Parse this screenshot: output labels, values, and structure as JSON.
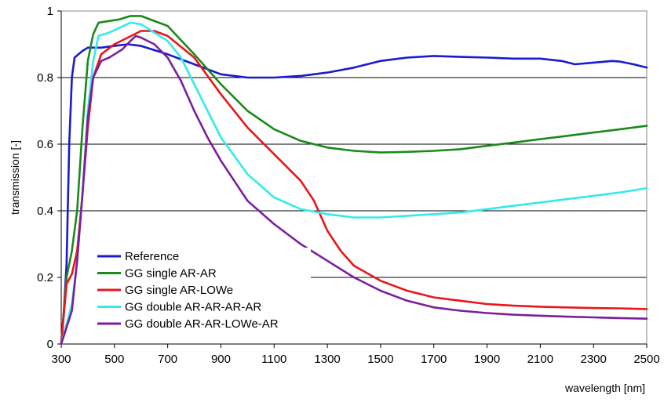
{
  "chart_data": {
    "type": "line",
    "title": "",
    "xlabel": "wavelength [nm]",
    "ylabel": "transmission [-]",
    "xlim": [
      300,
      2500
    ],
    "ylim": [
      0,
      1
    ],
    "xticks": [
      "300",
      "500",
      "700",
      "900",
      "1100",
      "1300",
      "1500",
      "1700",
      "1900",
      "2100",
      "2300",
      "2500"
    ],
    "yticks": [
      "0",
      "0.2",
      "0.4",
      "0.6",
      "0.8",
      "1"
    ],
    "grid": "horizontal",
    "legend_position": "lower-left",
    "series": [
      {
        "name": "Reference",
        "color": "#1a1ad0",
        "points": [
          [
            300,
            0.0
          ],
          [
            310,
            0.1
          ],
          [
            320,
            0.24
          ],
          [
            330,
            0.6
          ],
          [
            340,
            0.8
          ],
          [
            350,
            0.86
          ],
          [
            365,
            0.87
          ],
          [
            380,
            0.88
          ],
          [
            400,
            0.89
          ],
          [
            450,
            0.89
          ],
          [
            500,
            0.895
          ],
          [
            550,
            0.9
          ],
          [
            600,
            0.895
          ],
          [
            700,
            0.87
          ],
          [
            800,
            0.84
          ],
          [
            900,
            0.81
          ],
          [
            1000,
            0.8
          ],
          [
            1100,
            0.8
          ],
          [
            1200,
            0.805
          ],
          [
            1300,
            0.815
          ],
          [
            1400,
            0.83
          ],
          [
            1500,
            0.85
          ],
          [
            1600,
            0.86
          ],
          [
            1700,
            0.865
          ],
          [
            1800,
            0.862
          ],
          [
            1900,
            0.86
          ],
          [
            2000,
            0.857
          ],
          [
            2100,
            0.857
          ],
          [
            2180,
            0.85
          ],
          [
            2230,
            0.84
          ],
          [
            2300,
            0.845
          ],
          [
            2370,
            0.85
          ],
          [
            2400,
            0.848
          ],
          [
            2450,
            0.84
          ],
          [
            2500,
            0.83
          ]
        ]
      },
      {
        "name": "GG single AR-AR",
        "color": "#1a8a1a",
        "points": [
          [
            300,
            0.0
          ],
          [
            320,
            0.2
          ],
          [
            340,
            0.28
          ],
          [
            360,
            0.4
          ],
          [
            380,
            0.65
          ],
          [
            400,
            0.85
          ],
          [
            420,
            0.93
          ],
          [
            440,
            0.965
          ],
          [
            480,
            0.97
          ],
          [
            520,
            0.975
          ],
          [
            560,
            0.985
          ],
          [
            600,
            0.985
          ],
          [
            700,
            0.955
          ],
          [
            800,
            0.87
          ],
          [
            900,
            0.78
          ],
          [
            1000,
            0.7
          ],
          [
            1100,
            0.645
          ],
          [
            1200,
            0.61
          ],
          [
            1300,
            0.59
          ],
          [
            1400,
            0.58
          ],
          [
            1500,
            0.575
          ],
          [
            1600,
            0.577
          ],
          [
            1700,
            0.58
          ],
          [
            1800,
            0.585
          ],
          [
            1900,
            0.595
          ],
          [
            2000,
            0.605
          ],
          [
            2100,
            0.615
          ],
          [
            2200,
            0.625
          ],
          [
            2300,
            0.635
          ],
          [
            2400,
            0.645
          ],
          [
            2500,
            0.655
          ]
        ]
      },
      {
        "name": "GG single AR-LOWe",
        "color": "#e8161a",
        "points": [
          [
            300,
            0.0
          ],
          [
            320,
            0.18
          ],
          [
            340,
            0.21
          ],
          [
            360,
            0.28
          ],
          [
            380,
            0.45
          ],
          [
            400,
            0.65
          ],
          [
            420,
            0.8
          ],
          [
            450,
            0.87
          ],
          [
            500,
            0.9
          ],
          [
            550,
            0.92
          ],
          [
            600,
            0.94
          ],
          [
            650,
            0.94
          ],
          [
            700,
            0.925
          ],
          [
            800,
            0.86
          ],
          [
            900,
            0.75
          ],
          [
            1000,
            0.65
          ],
          [
            1100,
            0.57
          ],
          [
            1200,
            0.49
          ],
          [
            1250,
            0.43
          ],
          [
            1300,
            0.34
          ],
          [
            1350,
            0.28
          ],
          [
            1400,
            0.235
          ],
          [
            1500,
            0.19
          ],
          [
            1600,
            0.16
          ],
          [
            1700,
            0.14
          ],
          [
            1800,
            0.13
          ],
          [
            1900,
            0.12
          ],
          [
            2000,
            0.115
          ],
          [
            2100,
            0.112
          ],
          [
            2200,
            0.11
          ],
          [
            2300,
            0.108
          ],
          [
            2400,
            0.107
          ],
          [
            2500,
            0.105
          ]
        ]
      },
      {
        "name": "GG double AR-AR-AR-AR",
        "color": "#33eaea",
        "points": [
          [
            300,
            0.0
          ],
          [
            320,
            0.06
          ],
          [
            340,
            0.12
          ],
          [
            360,
            0.25
          ],
          [
            380,
            0.45
          ],
          [
            400,
            0.7
          ],
          [
            420,
            0.85
          ],
          [
            440,
            0.925
          ],
          [
            480,
            0.935
          ],
          [
            520,
            0.95
          ],
          [
            560,
            0.965
          ],
          [
            600,
            0.96
          ],
          [
            700,
            0.91
          ],
          [
            750,
            0.86
          ],
          [
            800,
            0.78
          ],
          [
            850,
            0.7
          ],
          [
            900,
            0.62
          ],
          [
            1000,
            0.51
          ],
          [
            1100,
            0.44
          ],
          [
            1200,
            0.405
          ],
          [
            1300,
            0.39
          ],
          [
            1400,
            0.38
          ],
          [
            1500,
            0.38
          ],
          [
            1600,
            0.385
          ],
          [
            1700,
            0.39
          ],
          [
            1800,
            0.395
          ],
          [
            1900,
            0.405
          ],
          [
            2000,
            0.415
          ],
          [
            2100,
            0.425
          ],
          [
            2200,
            0.435
          ],
          [
            2300,
            0.445
          ],
          [
            2400,
            0.455
          ],
          [
            2500,
            0.468
          ]
        ]
      },
      {
        "name": "GG double AR-AR-LOWe-AR",
        "color": "#7a1ea0",
        "points": [
          [
            300,
            0.0
          ],
          [
            320,
            0.05
          ],
          [
            340,
            0.1
          ],
          [
            360,
            0.25
          ],
          [
            380,
            0.45
          ],
          [
            400,
            0.68
          ],
          [
            420,
            0.8
          ],
          [
            450,
            0.85
          ],
          [
            480,
            0.86
          ],
          [
            500,
            0.87
          ],
          [
            530,
            0.885
          ],
          [
            560,
            0.91
          ],
          [
            580,
            0.925
          ],
          [
            600,
            0.92
          ],
          [
            650,
            0.9
          ],
          [
            700,
            0.86
          ],
          [
            750,
            0.79
          ],
          [
            800,
            0.7
          ],
          [
            850,
            0.62
          ],
          [
            900,
            0.55
          ],
          [
            1000,
            0.43
          ],
          [
            1100,
            0.36
          ],
          [
            1200,
            0.3
          ],
          [
            1300,
            0.25
          ],
          [
            1400,
            0.2
          ],
          [
            1500,
            0.16
          ],
          [
            1600,
            0.13
          ],
          [
            1700,
            0.11
          ],
          [
            1800,
            0.1
          ],
          [
            1900,
            0.093
          ],
          [
            2000,
            0.088
          ],
          [
            2100,
            0.085
          ],
          [
            2200,
            0.082
          ],
          [
            2300,
            0.08
          ],
          [
            2400,
            0.078
          ],
          [
            2500,
            0.076
          ]
        ]
      }
    ]
  }
}
